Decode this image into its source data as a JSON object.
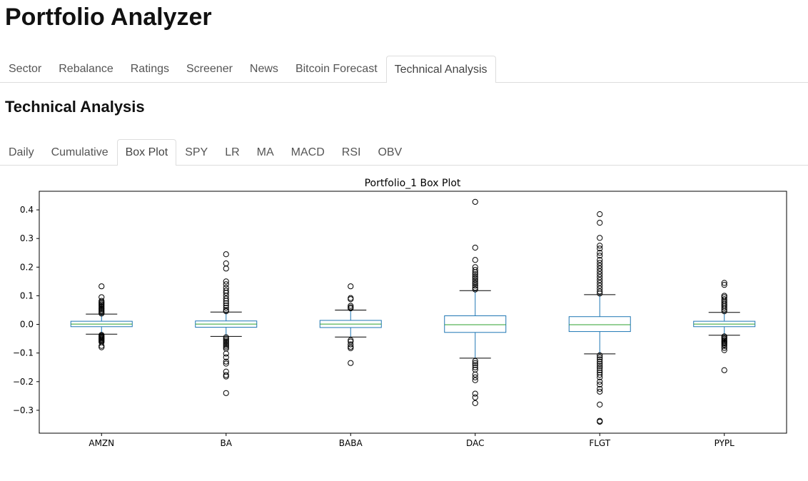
{
  "app": {
    "title": "Portfolio Analyzer"
  },
  "main_tabs": [
    {
      "label": "Sector",
      "active": false
    },
    {
      "label": "Rebalance",
      "active": false
    },
    {
      "label": "Ratings",
      "active": false
    },
    {
      "label": "Screener",
      "active": false
    },
    {
      "label": "News",
      "active": false
    },
    {
      "label": "Bitcoin Forecast",
      "active": false
    },
    {
      "label": "Technical Analysis",
      "active": true
    }
  ],
  "section": {
    "title": "Technical Analysis"
  },
  "sub_tabs": [
    {
      "label": "Daily",
      "active": false
    },
    {
      "label": "Cumulative",
      "active": false
    },
    {
      "label": "Box Plot",
      "active": true
    },
    {
      "label": "SPY",
      "active": false
    },
    {
      "label": "LR",
      "active": false
    },
    {
      "label": "MA",
      "active": false
    },
    {
      "label": "MACD",
      "active": false
    },
    {
      "label": "RSI",
      "active": false
    },
    {
      "label": "OBV",
      "active": false
    }
  ],
  "colors": {
    "box": "#1f77b4",
    "median": "#2ca02c",
    "whisker_cap": "#000000",
    "flier": "#000000"
  },
  "chart_data": {
    "type": "box",
    "title": "Portfolio_1 Box Plot",
    "ylim": [
      -0.38,
      0.465
    ],
    "yticks": [
      {
        "value": 0.4,
        "label": "0.4"
      },
      {
        "value": 0.3,
        "label": "0.3"
      },
      {
        "value": 0.2,
        "label": "0.2"
      },
      {
        "value": 0.1,
        "label": "0.1"
      },
      {
        "value": 0.0,
        "label": "0.0"
      },
      {
        "value": -0.1,
        "label": "−0.1"
      },
      {
        "value": -0.2,
        "label": "−0.2"
      },
      {
        "value": -0.3,
        "label": "−0.3"
      }
    ],
    "grid": false,
    "categories": [
      "AMZN",
      "BA",
      "BABA",
      "DAC",
      "FLGT",
      "PYPL"
    ],
    "boxes": [
      {
        "name": "AMZN",
        "whislo": -0.034,
        "q1": -0.008,
        "med": 0.001,
        "q3": 0.011,
        "whishi": 0.036,
        "fliers": [
          0.133,
          0.095,
          0.082,
          0.078,
          0.074,
          0.07,
          0.066,
          0.062,
          0.058,
          0.054,
          0.05,
          0.046,
          0.042,
          0.038,
          -0.037,
          -0.04,
          -0.043,
          -0.046,
          -0.049,
          -0.052,
          -0.055,
          -0.058,
          -0.062,
          -0.075,
          -0.08
        ]
      },
      {
        "name": "BA",
        "whislo": -0.042,
        "q1": -0.01,
        "med": 0.001,
        "q3": 0.012,
        "whishi": 0.043,
        "fliers": [
          0.245,
          0.213,
          0.195,
          0.15,
          0.14,
          0.128,
          0.118,
          0.11,
          0.1,
          0.09,
          0.082,
          0.074,
          0.066,
          0.058,
          0.05,
          0.046,
          -0.045,
          -0.05,
          -0.055,
          -0.06,
          -0.065,
          -0.07,
          -0.075,
          -0.08,
          -0.085,
          -0.102,
          -0.115,
          -0.13,
          -0.137,
          -0.165,
          -0.177,
          -0.182,
          -0.24
        ]
      },
      {
        "name": "BABA",
        "whislo": -0.044,
        "q1": -0.011,
        "med": 0.001,
        "q3": 0.014,
        "whishi": 0.05,
        "fliers": [
          0.133,
          0.092,
          0.088,
          0.065,
          0.06,
          0.056,
          -0.055,
          -0.06,
          -0.07,
          -0.078,
          -0.083,
          -0.135
        ]
      },
      {
        "name": "DAC",
        "whislo": -0.118,
        "q1": -0.028,
        "med": -0.001,
        "q3": 0.03,
        "whishi": 0.118,
        "fliers": [
          0.428,
          0.268,
          0.225,
          0.2,
          0.19,
          0.182,
          0.175,
          0.168,
          0.162,
          0.155,
          0.148,
          0.142,
          0.135,
          0.128,
          0.122,
          -0.128,
          -0.135,
          -0.142,
          -0.15,
          -0.158,
          -0.175,
          -0.185,
          -0.195,
          -0.242,
          -0.255,
          -0.275
        ]
      },
      {
        "name": "FLGT",
        "whislo": -0.103,
        "q1": -0.025,
        "med": -0.001,
        "q3": 0.027,
        "whishi": 0.104,
        "fliers": [
          0.385,
          0.355,
          0.302,
          0.275,
          0.265,
          0.25,
          0.24,
          0.225,
          0.215,
          0.205,
          0.195,
          0.185,
          0.175,
          0.165,
          0.155,
          0.145,
          0.135,
          0.125,
          0.115,
          0.108,
          -0.108,
          -0.115,
          -0.122,
          -0.13,
          -0.138,
          -0.145,
          -0.152,
          -0.16,
          -0.168,
          -0.176,
          -0.185,
          -0.2,
          -0.21,
          -0.225,
          -0.235,
          -0.28,
          -0.337,
          -0.34
        ]
      },
      {
        "name": "PYPL",
        "whislo": -0.038,
        "q1": -0.008,
        "med": 0.001,
        "q3": 0.011,
        "whishi": 0.042,
        "fliers": [
          0.145,
          0.138,
          0.1,
          0.095,
          0.088,
          0.082,
          0.076,
          0.07,
          0.064,
          0.058,
          0.052,
          0.046,
          -0.042,
          -0.046,
          -0.05,
          -0.054,
          -0.058,
          -0.062,
          -0.066,
          -0.07,
          -0.075,
          -0.082,
          -0.09,
          -0.16
        ]
      }
    ]
  }
}
